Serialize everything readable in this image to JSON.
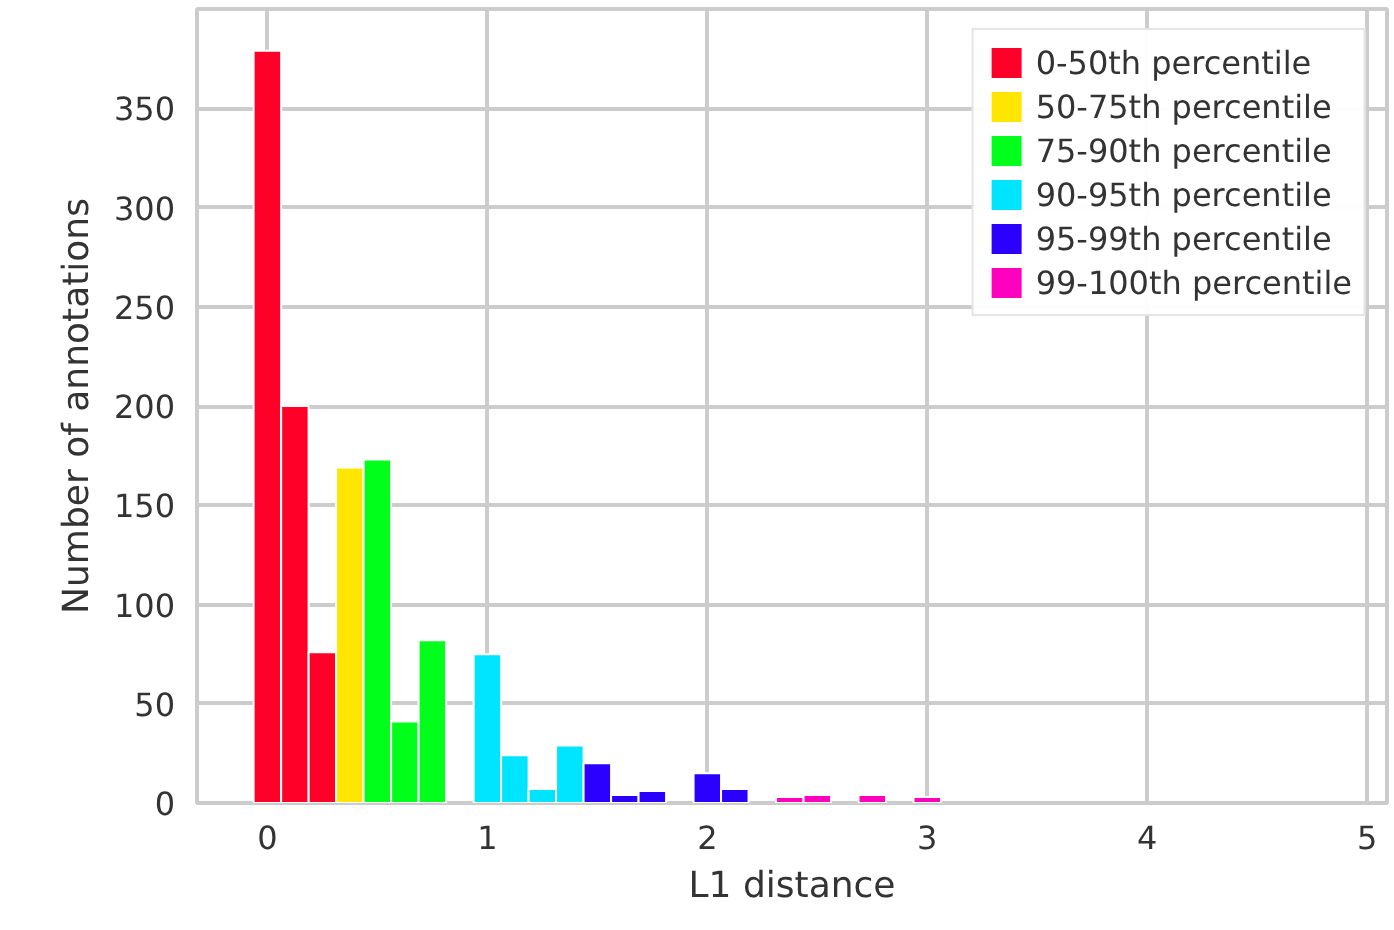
{
  "chart_data": {
    "type": "histogram",
    "xlabel": "L1 distance",
    "ylabel": "Number of annotations",
    "bins": [
      -0.0625,
      0.0625,
      0.1875,
      0.3125,
      0.4375,
      0.5625,
      0.6875,
      0.8125,
      0.9375,
      1.0625,
      1.1875,
      1.3125,
      1.4375,
      1.5625,
      1.6875,
      1.8125,
      1.9375,
      2.0625,
      2.1875,
      2.3125,
      2.4375,
      2.5625,
      2.6875,
      2.8125,
      2.9375,
      3.0625
    ],
    "series": [
      {
        "name": "0-50th percentile",
        "color": "#ff0029",
        "values": [
          379,
          200,
          76,
          null,
          null,
          null,
          null,
          null,
          null,
          null,
          null,
          null,
          null,
          null,
          null,
          null,
          null,
          null,
          null,
          null,
          null,
          null,
          null,
          null,
          null
        ]
      },
      {
        "name": "50-75th percentile",
        "color": "#ffe600",
        "values": [
          null,
          null,
          null,
          169,
          null,
          null,
          null,
          null,
          null,
          null,
          null,
          null,
          null,
          null,
          null,
          null,
          null,
          null,
          null,
          null,
          null,
          null,
          null,
          null,
          null
        ]
      },
      {
        "name": "75-90th percentile",
        "color": "#00ff1a",
        "values": [
          null,
          null,
          null,
          null,
          173,
          41,
          82,
          null,
          null,
          null,
          null,
          null,
          null,
          null,
          null,
          null,
          null,
          null,
          null,
          null,
          null,
          null,
          null,
          null,
          null
        ]
      },
      {
        "name": "90-95th percentile",
        "color": "#00e5ff",
        "values": [
          null,
          null,
          null,
          null,
          null,
          null,
          null,
          null,
          75,
          24,
          7,
          29,
          null,
          null,
          null,
          null,
          null,
          null,
          null,
          null,
          null,
          null,
          null,
          null,
          null
        ]
      },
      {
        "name": "95-99th percentile",
        "color": "#2b00ff",
        "values": [
          null,
          null,
          null,
          null,
          null,
          null,
          null,
          null,
          null,
          null,
          null,
          null,
          20,
          4,
          6,
          null,
          15,
          7,
          null,
          null,
          null,
          null,
          null,
          null,
          null
        ]
      },
      {
        "name": "99-100th percentile",
        "color": "#ff00bf",
        "values": [
          null,
          null,
          null,
          null,
          null,
          null,
          null,
          null,
          null,
          null,
          null,
          null,
          null,
          null,
          null,
          null,
          null,
          null,
          null,
          3,
          4,
          null,
          4,
          null,
          3
        ]
      }
    ],
    "xlim": [
      -0.32,
      5.09
    ],
    "xticks": [
      0,
      1,
      2,
      3,
      4,
      5
    ],
    "ylim": [
      0,
      400
    ],
    "yticks": [
      0,
      50,
      100,
      150,
      200,
      250,
      300,
      350
    ],
    "grid": true,
    "legend": "top right"
  }
}
